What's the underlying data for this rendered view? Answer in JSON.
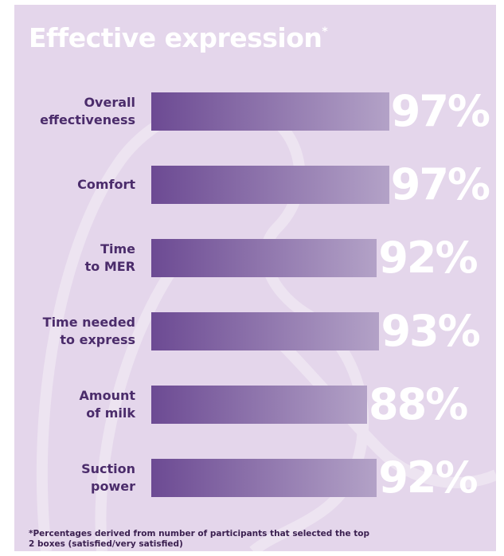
{
  "chart_data": {
    "type": "bar",
    "orientation": "horizontal",
    "title": "Effective expression",
    "title_mark": "*",
    "categories": [
      "Overall\neffectiveness",
      "Comfort",
      "Time\nto MER",
      "Time needed\nto express",
      "Amount\nof milk",
      "Suction\npower"
    ],
    "values": [
      97,
      97,
      92,
      93,
      88,
      92
    ],
    "value_labels": [
      "97%",
      "97%",
      "92%",
      "93%",
      "88%",
      "92%"
    ],
    "color": "#6c4a93",
    "footnote": "*Percentages derived from number of participants that selected the top 2 boxes (satisfied/very satisfied)"
  }
}
